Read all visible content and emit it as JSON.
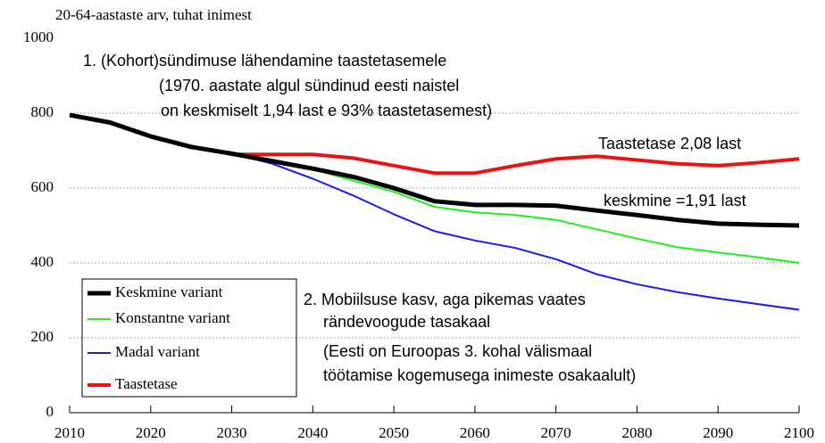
{
  "chart_data": {
    "type": "line",
    "title": "20-64-aastaste arv, tuhat inimest",
    "x": [
      2010,
      2015,
      2020,
      2025,
      2030,
      2035,
      2040,
      2045,
      2050,
      2055,
      2060,
      2065,
      2070,
      2075,
      2080,
      2085,
      2090,
      2095,
      2100
    ],
    "xlim": [
      2010,
      2100
    ],
    "xticks": [
      2010,
      2020,
      2030,
      2040,
      2050,
      2060,
      2070,
      2080,
      2090,
      2100
    ],
    "ylim": [
      0,
      1000
    ],
    "yticks": [
      0,
      200,
      400,
      600,
      800,
      1000
    ],
    "grid": true,
    "legend": "lower left",
    "series": [
      {
        "name": "Keskmine variant",
        "color": "#000000",
        "values": [
          795,
          775,
          738,
          710,
          692,
          672,
          652,
          630,
          600,
          565,
          555,
          555,
          553,
          540,
          528,
          515,
          505,
          502,
          500
        ]
      },
      {
        "name": "Konstantne variant",
        "color": "#22ee22",
        "values": [
          795,
          775,
          738,
          710,
          692,
          675,
          650,
          620,
          590,
          550,
          535,
          528,
          515,
          490,
          465,
          442,
          428,
          415,
          400
        ]
      },
      {
        "name": "Madal variant",
        "color": "#1a1aee",
        "values": [
          795,
          775,
          738,
          710,
          692,
          665,
          625,
          580,
          530,
          485,
          460,
          440,
          410,
          370,
          343,
          322,
          305,
          290,
          275
        ]
      },
      {
        "name": "Taastetase",
        "color": "#ee1111",
        "values": [
          null,
          null,
          null,
          null,
          690,
          690,
          690,
          680,
          660,
          640,
          640,
          660,
          678,
          685,
          675,
          665,
          660,
          668,
          678
        ]
      }
    ],
    "annotations": [
      "1. (Kohort)sündimuse lähendamine taastetasemele",
      "(1970. aastate algul sündinud eesti naistel",
      "on keskmiselt 1,94 last e 93% taastetasemest)",
      "Taastetase 2,08 last",
      "keskmine =1,91 last",
      "2. Mobiilsuse kasv, aga pikemas vaates",
      "rändevoogude tasakaal",
      "(Eesti on Euroopas 3. kohal välismaal",
      "töötamise kogemusega inimeste osakaalult)"
    ]
  }
}
